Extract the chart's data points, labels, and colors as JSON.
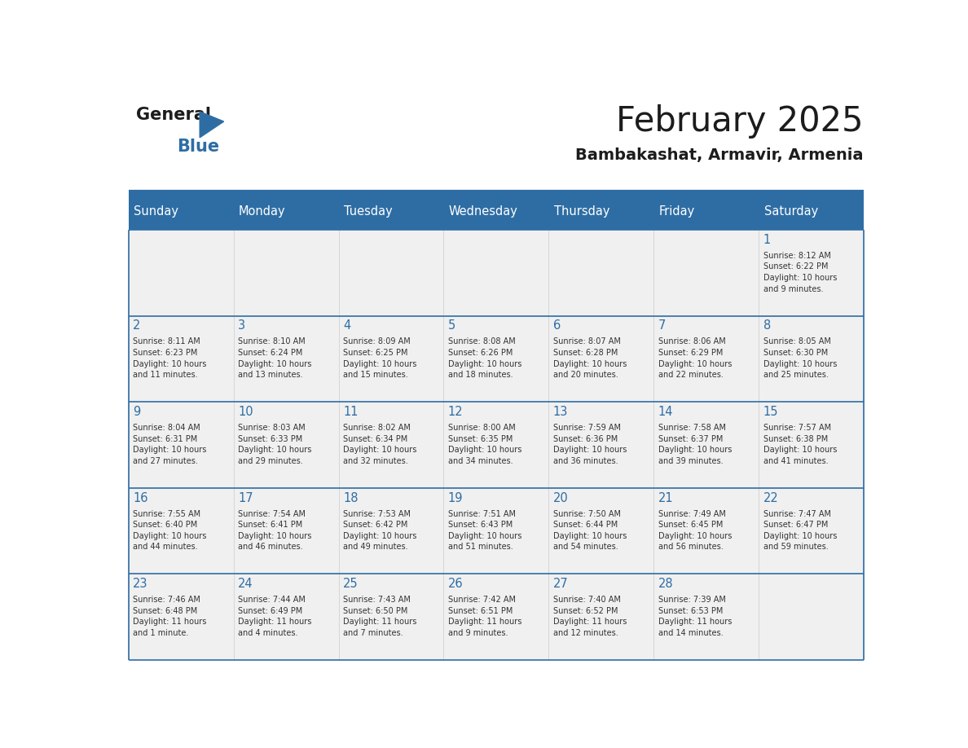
{
  "title": "February 2025",
  "subtitle": "Bambakashat, Armavir, Armenia",
  "header_bg": "#2E6DA4",
  "header_text_color": "#FFFFFF",
  "cell_bg": "#F0F0F0",
  "day_number_color": "#2E6DA4",
  "cell_text_color": "#333333",
  "line_color": "#2E6DA4",
  "days_of_week": [
    "Sunday",
    "Monday",
    "Tuesday",
    "Wednesday",
    "Thursday",
    "Friday",
    "Saturday"
  ],
  "weeks": [
    [
      {
        "day": "",
        "info": ""
      },
      {
        "day": "",
        "info": ""
      },
      {
        "day": "",
        "info": ""
      },
      {
        "day": "",
        "info": ""
      },
      {
        "day": "",
        "info": ""
      },
      {
        "day": "",
        "info": ""
      },
      {
        "day": "1",
        "info": "Sunrise: 8:12 AM\nSunset: 6:22 PM\nDaylight: 10 hours\nand 9 minutes."
      }
    ],
    [
      {
        "day": "2",
        "info": "Sunrise: 8:11 AM\nSunset: 6:23 PM\nDaylight: 10 hours\nand 11 minutes."
      },
      {
        "day": "3",
        "info": "Sunrise: 8:10 AM\nSunset: 6:24 PM\nDaylight: 10 hours\nand 13 minutes."
      },
      {
        "day": "4",
        "info": "Sunrise: 8:09 AM\nSunset: 6:25 PM\nDaylight: 10 hours\nand 15 minutes."
      },
      {
        "day": "5",
        "info": "Sunrise: 8:08 AM\nSunset: 6:26 PM\nDaylight: 10 hours\nand 18 minutes."
      },
      {
        "day": "6",
        "info": "Sunrise: 8:07 AM\nSunset: 6:28 PM\nDaylight: 10 hours\nand 20 minutes."
      },
      {
        "day": "7",
        "info": "Sunrise: 8:06 AM\nSunset: 6:29 PM\nDaylight: 10 hours\nand 22 minutes."
      },
      {
        "day": "8",
        "info": "Sunrise: 8:05 AM\nSunset: 6:30 PM\nDaylight: 10 hours\nand 25 minutes."
      }
    ],
    [
      {
        "day": "9",
        "info": "Sunrise: 8:04 AM\nSunset: 6:31 PM\nDaylight: 10 hours\nand 27 minutes."
      },
      {
        "day": "10",
        "info": "Sunrise: 8:03 AM\nSunset: 6:33 PM\nDaylight: 10 hours\nand 29 minutes."
      },
      {
        "day": "11",
        "info": "Sunrise: 8:02 AM\nSunset: 6:34 PM\nDaylight: 10 hours\nand 32 minutes."
      },
      {
        "day": "12",
        "info": "Sunrise: 8:00 AM\nSunset: 6:35 PM\nDaylight: 10 hours\nand 34 minutes."
      },
      {
        "day": "13",
        "info": "Sunrise: 7:59 AM\nSunset: 6:36 PM\nDaylight: 10 hours\nand 36 minutes."
      },
      {
        "day": "14",
        "info": "Sunrise: 7:58 AM\nSunset: 6:37 PM\nDaylight: 10 hours\nand 39 minutes."
      },
      {
        "day": "15",
        "info": "Sunrise: 7:57 AM\nSunset: 6:38 PM\nDaylight: 10 hours\nand 41 minutes."
      }
    ],
    [
      {
        "day": "16",
        "info": "Sunrise: 7:55 AM\nSunset: 6:40 PM\nDaylight: 10 hours\nand 44 minutes."
      },
      {
        "day": "17",
        "info": "Sunrise: 7:54 AM\nSunset: 6:41 PM\nDaylight: 10 hours\nand 46 minutes."
      },
      {
        "day": "18",
        "info": "Sunrise: 7:53 AM\nSunset: 6:42 PM\nDaylight: 10 hours\nand 49 minutes."
      },
      {
        "day": "19",
        "info": "Sunrise: 7:51 AM\nSunset: 6:43 PM\nDaylight: 10 hours\nand 51 minutes."
      },
      {
        "day": "20",
        "info": "Sunrise: 7:50 AM\nSunset: 6:44 PM\nDaylight: 10 hours\nand 54 minutes."
      },
      {
        "day": "21",
        "info": "Sunrise: 7:49 AM\nSunset: 6:45 PM\nDaylight: 10 hours\nand 56 minutes."
      },
      {
        "day": "22",
        "info": "Sunrise: 7:47 AM\nSunset: 6:47 PM\nDaylight: 10 hours\nand 59 minutes."
      }
    ],
    [
      {
        "day": "23",
        "info": "Sunrise: 7:46 AM\nSunset: 6:48 PM\nDaylight: 11 hours\nand 1 minute."
      },
      {
        "day": "24",
        "info": "Sunrise: 7:44 AM\nSunset: 6:49 PM\nDaylight: 11 hours\nand 4 minutes."
      },
      {
        "day": "25",
        "info": "Sunrise: 7:43 AM\nSunset: 6:50 PM\nDaylight: 11 hours\nand 7 minutes."
      },
      {
        "day": "26",
        "info": "Sunrise: 7:42 AM\nSunset: 6:51 PM\nDaylight: 11 hours\nand 9 minutes."
      },
      {
        "day": "27",
        "info": "Sunrise: 7:40 AM\nSunset: 6:52 PM\nDaylight: 11 hours\nand 12 minutes."
      },
      {
        "day": "28",
        "info": "Sunrise: 7:39 AM\nSunset: 6:53 PM\nDaylight: 11 hours\nand 14 minutes."
      },
      {
        "day": "",
        "info": ""
      }
    ]
  ]
}
